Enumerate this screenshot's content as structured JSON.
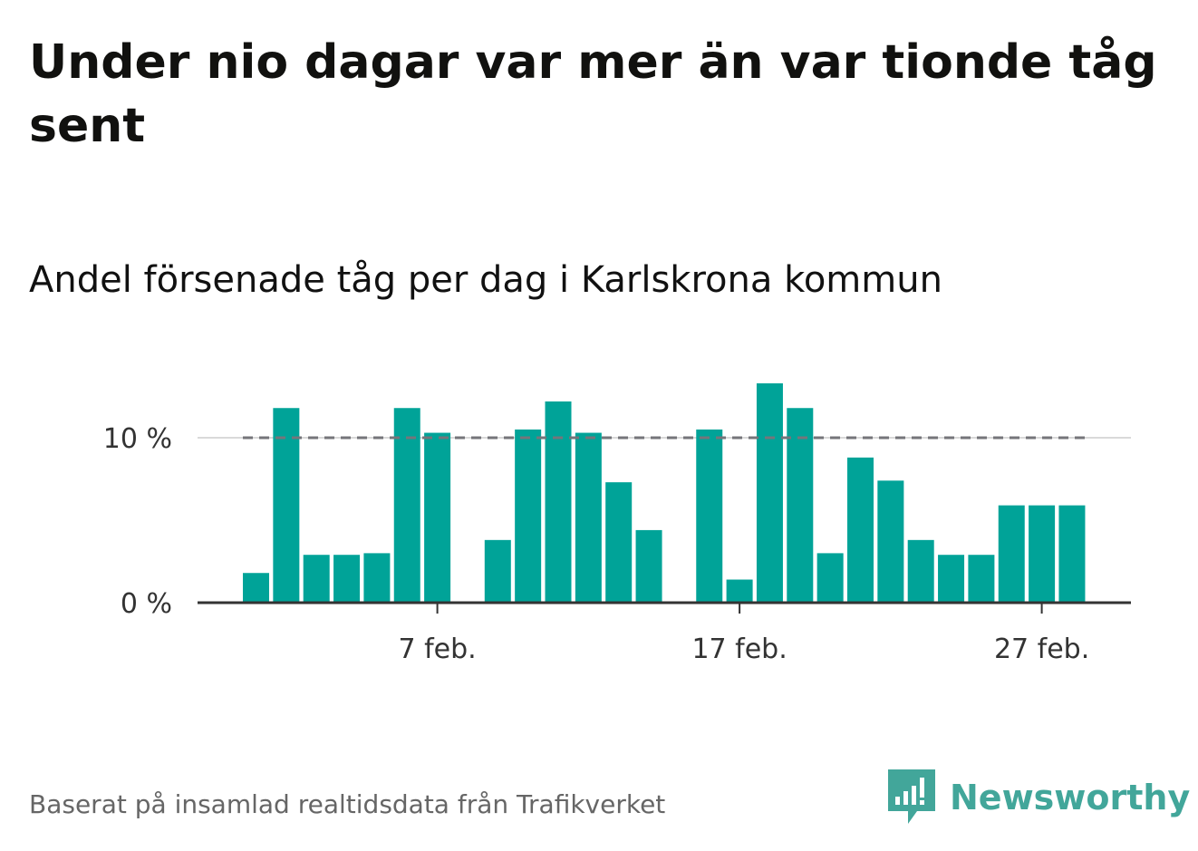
{
  "header": {
    "title": "Under nio dagar var mer än var tionde tåg sent",
    "subtitle": "Andel försenade tåg per dag i Karlskrona kommun"
  },
  "footer": {
    "source": "Baserat på insamlad realtidsdata från Trafikverket",
    "brand": "Newsworthy",
    "brand_icon": "newsworthy-logo-icon"
  },
  "colors": {
    "bar": "#00a398",
    "reference_line": "#75757a",
    "grid": "#d9d9d9",
    "axis": "#333333",
    "brand": "#42a69a"
  },
  "chart_data": {
    "type": "bar",
    "x": [
      "1 feb.",
      "2 feb.",
      "3 feb.",
      "4 feb.",
      "5 feb.",
      "6 feb.",
      "7 feb.",
      "8 feb.",
      "9 feb.",
      "10 feb.",
      "11 feb.",
      "12 feb.",
      "13 feb.",
      "14 feb.",
      "15 feb.",
      "16 feb.",
      "17 feb.",
      "18 feb.",
      "19 feb.",
      "20 feb.",
      "21 feb.",
      "22 feb.",
      "23 feb.",
      "24 feb.",
      "25 feb.",
      "26 feb.",
      "27 feb.",
      "28 feb."
    ],
    "values": [
      1.8,
      11.8,
      2.9,
      2.9,
      3.0,
      11.8,
      10.3,
      0,
      3.8,
      10.5,
      12.2,
      10.3,
      7.3,
      4.4,
      0,
      10.5,
      1.4,
      13.3,
      11.8,
      3.0,
      8.8,
      7.4,
      3.8,
      2.9,
      2.9,
      5.9,
      5.9,
      5.9
    ],
    "reference_line": 10,
    "xticks": [
      "7 feb.",
      "17 feb.",
      "27 feb."
    ],
    "yticks": [
      "0 %",
      "10 %"
    ],
    "ytick_values": [
      0,
      10
    ],
    "ylim": [
      0,
      13.5
    ],
    "grid": true
  }
}
